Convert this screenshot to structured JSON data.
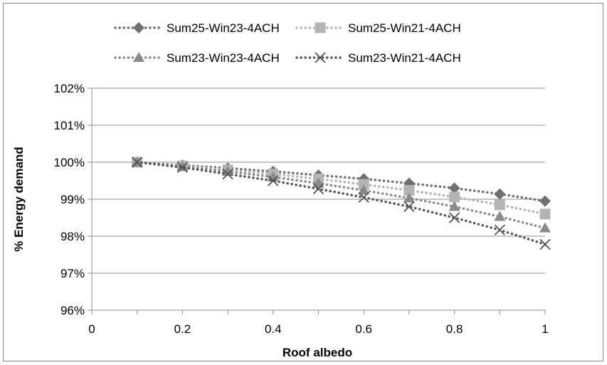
{
  "chart_data": {
    "type": "line",
    "title": "",
    "xlabel": "Roof albedo",
    "ylabel": "% Energy demand",
    "xlim": [
      0,
      1
    ],
    "ylim": [
      96,
      102
    ],
    "x_ticks": [
      "0",
      "0.2",
      "0.4",
      "0.6",
      "0.8",
      "1"
    ],
    "y_ticks": [
      "96%",
      "97%",
      "98%",
      "99%",
      "100%",
      "101%",
      "102%"
    ],
    "grid": "horizontal",
    "legend_position": "top",
    "x": [
      0.1,
      0.2,
      0.3,
      0.4,
      0.5,
      0.6,
      0.7,
      0.8,
      0.9,
      1.0
    ],
    "series": [
      {
        "name": "Sum25-Win23-4ACH",
        "marker": "diamond",
        "color": "#707070",
        "values": [
          100.0,
          99.92,
          99.84,
          99.75,
          99.65,
          99.55,
          99.43,
          99.3,
          99.14,
          98.95
        ]
      },
      {
        "name": "Sum25-Win21-4ACH",
        "marker": "square",
        "color": "#b4b4b4",
        "values": [
          100.0,
          99.9,
          99.79,
          99.68,
          99.55,
          99.4,
          99.24,
          99.06,
          98.85,
          98.6
        ]
      },
      {
        "name": "Sum23-Win23-4ACH",
        "marker": "triangle",
        "color": "#8a8a8a",
        "values": [
          100.0,
          99.88,
          99.75,
          99.6,
          99.43,
          99.24,
          99.03,
          98.8,
          98.53,
          98.22
        ]
      },
      {
        "name": "Sum23-Win21-4ACH",
        "marker": "x",
        "color": "#555555",
        "values": [
          100.0,
          99.86,
          99.68,
          99.5,
          99.28,
          99.05,
          98.8,
          98.5,
          98.17,
          97.78
        ]
      }
    ]
  }
}
